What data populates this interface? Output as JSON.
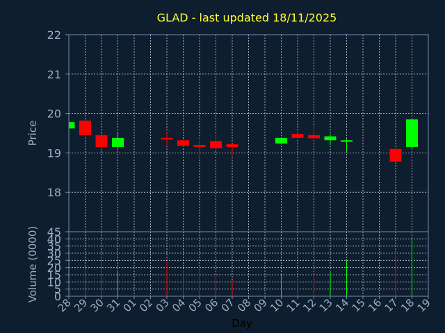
{
  "title": "GLAD - last updated 18/11/2025",
  "colors": {
    "background": "#0f1e2e",
    "axis": "#6f8fb0",
    "grid": "#c8d4e0",
    "title": "#ffff33",
    "label": "#9ab0c8",
    "up": "#00ff00",
    "down": "#ff0000"
  },
  "chart_data": [
    {
      "type": "candlestick",
      "ylabel": "Price",
      "ylim": [
        17,
        22
      ],
      "yticks": [
        18,
        19,
        20,
        21,
        22
      ],
      "grid": true,
      "x": [
        "28",
        "29",
        "30",
        "31",
        "01",
        "02",
        "03",
        "04",
        "05",
        "06",
        "07",
        "08",
        "09",
        "10",
        "11",
        "12",
        "13",
        "14",
        "15",
        "16",
        "17",
        "18",
        "19"
      ],
      "candles": [
        {
          "day": "28",
          "open": 19.62,
          "close": 19.78,
          "high": 19.8,
          "low": 19.6
        },
        {
          "day": "29",
          "open": 19.82,
          "close": 19.45,
          "high": 19.85,
          "low": 19.38
        },
        {
          "day": "30",
          "open": 19.45,
          "close": 19.15,
          "high": 19.5,
          "low": 19.05
        },
        {
          "day": "31",
          "open": 19.15,
          "close": 19.38,
          "high": 19.5,
          "low": 19.12
        },
        {
          "day": "03",
          "open": 19.38,
          "close": 19.34,
          "high": 19.52,
          "low": 19.2
        },
        {
          "day": "04",
          "open": 19.32,
          "close": 19.18,
          "high": 19.35,
          "low": 19.15
        },
        {
          "day": "05",
          "open": 19.2,
          "close": 19.15,
          "high": 19.38,
          "low": 18.85
        },
        {
          "day": "06",
          "open": 19.3,
          "close": 19.12,
          "high": 19.45,
          "low": 19.05
        },
        {
          "day": "07",
          "open": 19.22,
          "close": 19.15,
          "high": 19.23,
          "low": 18.95
        },
        {
          "day": "10",
          "open": 19.24,
          "close": 19.38,
          "high": 19.4,
          "low": 19.22
        },
        {
          "day": "11",
          "open": 19.48,
          "close": 19.38,
          "high": 19.52,
          "low": 19.35
        },
        {
          "day": "12",
          "open": 19.45,
          "close": 19.37,
          "high": 19.7,
          "low": 19.35
        },
        {
          "day": "13",
          "open": 19.32,
          "close": 19.42,
          "high": 19.48,
          "low": 19.2
        },
        {
          "day": "14",
          "open": 19.3,
          "close": 19.32,
          "high": 19.35,
          "low": 19.05
        },
        {
          "day": "17",
          "open": 19.1,
          "close": 18.78,
          "high": 19.12,
          "low": 18.75
        },
        {
          "day": "18",
          "open": 19.15,
          "close": 19.85,
          "high": 19.88,
          "low": 19.1
        }
      ]
    },
    {
      "type": "bar",
      "ylabel": "Volume (0000)",
      "xlabel": "Day",
      "ylim": [
        0,
        45
      ],
      "yticks": [
        0,
        5,
        10,
        15,
        20,
        25,
        30,
        35,
        40,
        45
      ],
      "grid": true,
      "categories": [
        "28",
        "29",
        "30",
        "31",
        "03",
        "04",
        "05",
        "06",
        "07",
        "10",
        "11",
        "12",
        "13",
        "14",
        "17",
        "18"
      ],
      "values": [
        0,
        21,
        25,
        18,
        24,
        18,
        20,
        14,
        11,
        15,
        12,
        15,
        18,
        25,
        31,
        40
      ],
      "direction": [
        "up",
        "down",
        "down",
        "up",
        "down",
        "down",
        "down",
        "down",
        "down",
        "up",
        "down",
        "down",
        "up",
        "up",
        "down",
        "up"
      ]
    }
  ]
}
